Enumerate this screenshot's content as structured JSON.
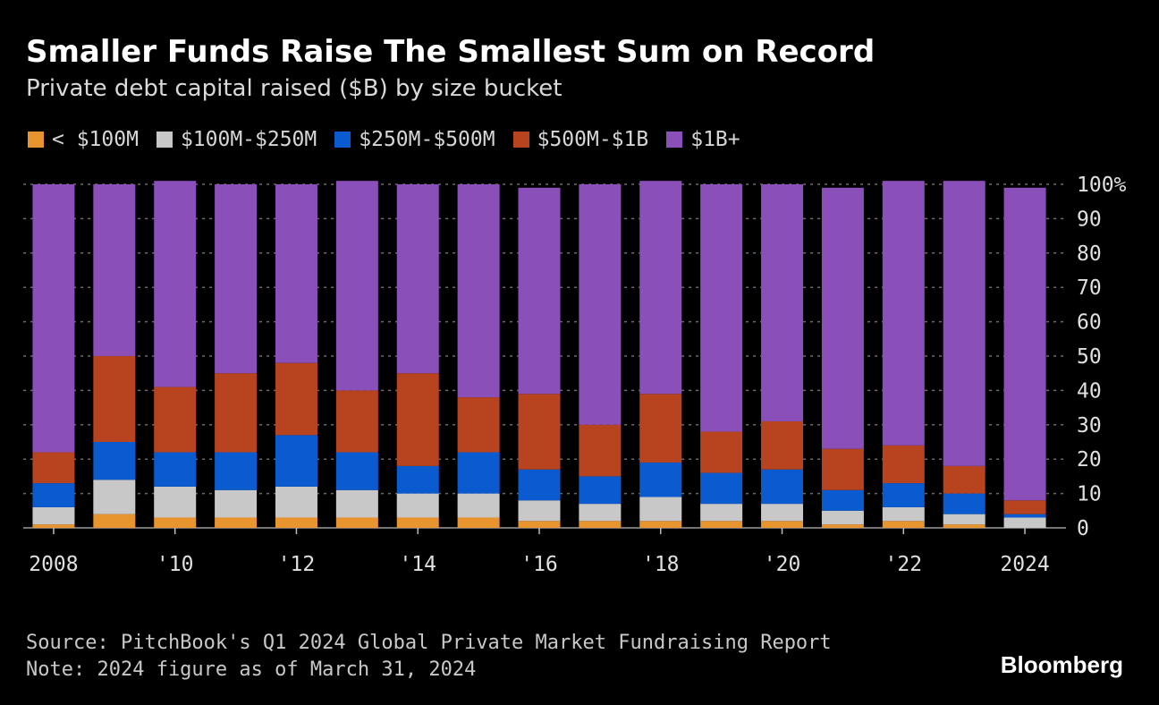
{
  "title": "Smaller Funds Raise The Smallest Sum on Record",
  "subtitle": "Private debt capital raised ($B) by size bucket",
  "source": "Source: PitchBook's Q1 2024 Global Private Market Fundraising Report",
  "note": "Note: 2024 figure as of March 31, 2024",
  "brand": "Bloomberg",
  "legend": [
    {
      "label": "< $100M",
      "color": "#e8952f"
    },
    {
      "label": "$100M-$250M",
      "color": "#c8c8c8"
    },
    {
      "label": "$250M-$500M",
      "color": "#0a5bd0"
    },
    {
      "label": "$500M-$1B",
      "color": "#b8431f"
    },
    {
      "label": "$1B+",
      "color": "#8a4fb8"
    }
  ],
  "chart_data": {
    "type": "bar",
    "stacked": true,
    "categories": [
      "2008",
      "2009",
      "2010",
      "2011",
      "2012",
      "2013",
      "2014",
      "2015",
      "2016",
      "2017",
      "2018",
      "2019",
      "2020",
      "2021",
      "2022",
      "2023",
      "2024"
    ],
    "x_tick_labels": [
      {
        "index": 0,
        "label": "2008"
      },
      {
        "index": 2,
        "label": "'10"
      },
      {
        "index": 4,
        "label": "'12"
      },
      {
        "index": 6,
        "label": "'14"
      },
      {
        "index": 8,
        "label": "'16"
      },
      {
        "index": 10,
        "label": "'18"
      },
      {
        "index": 12,
        "label": "'20"
      },
      {
        "index": 14,
        "label": "'22"
      },
      {
        "index": 16,
        "label": "2024"
      }
    ],
    "y_ticks": [
      {
        "value": 100,
        "label": "100%"
      },
      {
        "value": 90,
        "label": "90"
      },
      {
        "value": 80,
        "label": "80"
      },
      {
        "value": 70,
        "label": "70"
      },
      {
        "value": 60,
        "label": "60"
      },
      {
        "value": 50,
        "label": "50"
      },
      {
        "value": 40,
        "label": "40"
      },
      {
        "value": 30,
        "label": "30"
      },
      {
        "value": 20,
        "label": "20"
      },
      {
        "value": 10,
        "label": "10"
      },
      {
        "value": 0,
        "label": "0"
      }
    ],
    "ylim": [
      0,
      100
    ],
    "grid": true,
    "series": [
      {
        "name": "< $100M",
        "color": "#e8952f",
        "values": [
          1,
          4,
          3,
          3,
          3,
          3,
          3,
          3,
          2,
          2,
          2,
          2,
          2,
          1,
          2,
          1,
          0
        ]
      },
      {
        "name": "$100M-$250M",
        "color": "#c8c8c8",
        "values": [
          5,
          10,
          9,
          8,
          9,
          8,
          7,
          7,
          6,
          5,
          7,
          5,
          5,
          4,
          4,
          3,
          3
        ]
      },
      {
        "name": "$250M-$500M",
        "color": "#0a5bd0",
        "values": [
          7,
          11,
          10,
          11,
          15,
          11,
          8,
          12,
          9,
          8,
          10,
          9,
          10,
          6,
          7,
          6,
          1
        ]
      },
      {
        "name": "$500M-$1B",
        "color": "#b8431f",
        "values": [
          9,
          25,
          19,
          23,
          21,
          18,
          27,
          16,
          22,
          15,
          20,
          12,
          14,
          12,
          11,
          8,
          4
        ]
      },
      {
        "name": "$1B+",
        "color": "#8a4fb8",
        "values": [
          78,
          50,
          60,
          55,
          52,
          61,
          55,
          62,
          60,
          70,
          62,
          72,
          69,
          76,
          77,
          83,
          91
        ]
      }
    ]
  }
}
